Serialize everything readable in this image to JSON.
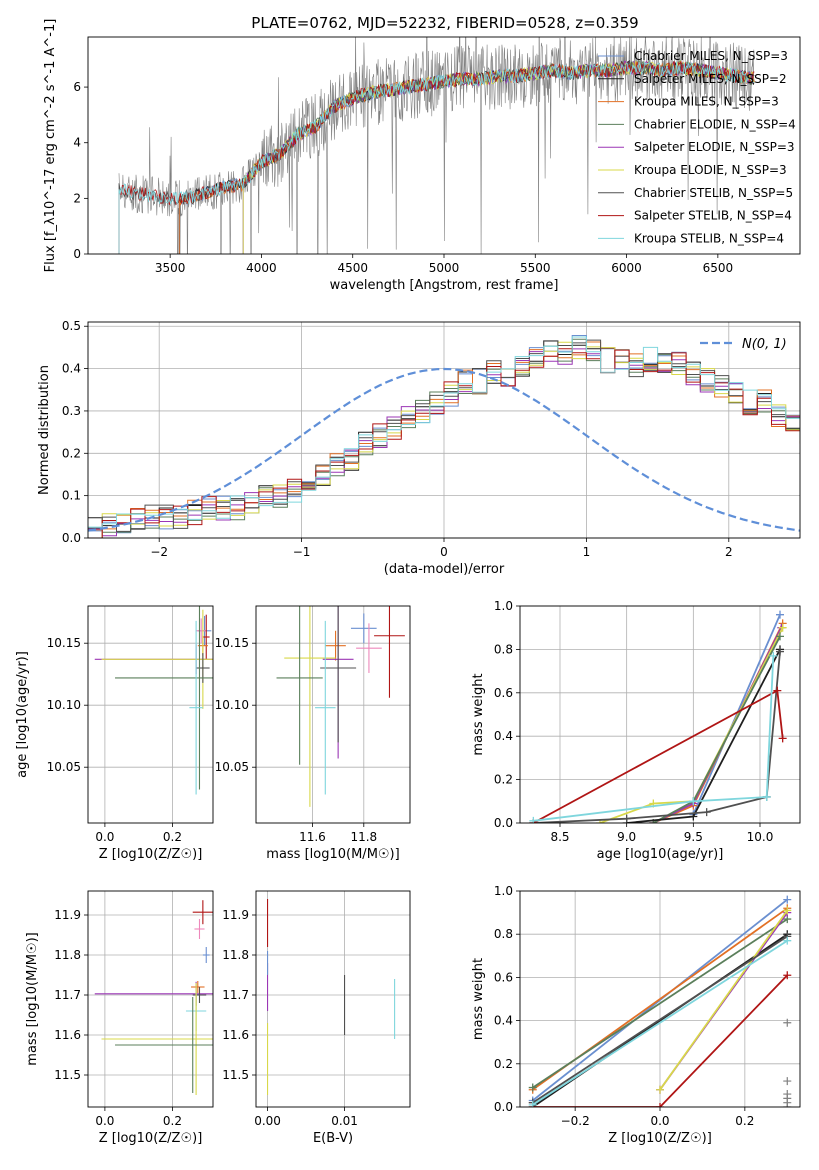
{
  "figure": {
    "title": "PLATE=0762, MJD=52232, FIBERID=0528, z=0.359"
  },
  "colors": {
    "Chabrier MILES": "#6a8fd0",
    "Salpeter MILES": "#1f1f1f",
    "Kroupa MILES": "#e27025",
    "Chabrier ELODIE": "#5b7f5b",
    "Salpeter ELODIE": "#9b36b5",
    "Kroupa ELODIE": "#d8d84a",
    "Chabrier STELIB": "#505050",
    "Salpeter STELIB": "#b01515",
    "Kroupa STELIB": "#7fd6dd",
    "pink": "#ee88bb",
    "data": "#808080",
    "normal": "#5f8fd8"
  },
  "chart_data": [
    {
      "id": "spectrum",
      "type": "line",
      "title": "PLATE=0762, MJD=52232, FIBERID=0528, z=0.359",
      "xlabel": "wavelength [Angstrom, rest frame]",
      "ylabel": "Flux [f_λ10^-17 erg cm^-2 s^-1 A^-1]",
      "xlim": [
        3050,
        6950
      ],
      "ylim": [
        0,
        7.8
      ],
      "xticks": [
        3500,
        4000,
        4500,
        5000,
        5500,
        6000,
        6500
      ],
      "yticks": [
        0,
        2,
        4,
        6
      ],
      "grid": false,
      "legend": "right",
      "continuum": {
        "x": [
          3200,
          3300,
          3400,
          3500,
          3600,
          3700,
          3800,
          3900,
          4000,
          4100,
          4200,
          4300,
          4400,
          4500,
          4600,
          4700,
          4800,
          4900,
          5000,
          5100,
          5200,
          5300,
          5400,
          5500,
          5600,
          5700,
          5800,
          5900,
          6000,
          6100,
          6200,
          6300,
          6400,
          6500,
          6600,
          6700
        ],
        "y": [
          2.4,
          2.2,
          2.1,
          2.0,
          2.0,
          2.2,
          2.4,
          2.5,
          3.3,
          3.6,
          4.3,
          4.6,
          5.3,
          5.6,
          5.8,
          5.9,
          6.0,
          6.1,
          6.2,
          6.3,
          6.3,
          6.4,
          6.4,
          6.5,
          6.6,
          6.5,
          6.6,
          6.6,
          6.7,
          6.7,
          6.6,
          6.7,
          6.6,
          6.5,
          6.4,
          6.3
        ]
      },
      "legend_entries": [
        {
          "label": "Chabrier MILES, N_SSP=3",
          "color": "#6a8fd0",
          "start": 3550,
          "end": 6700
        },
        {
          "label": "Salpeter MILES, N_SSP=2",
          "color": "#1f1f1f",
          "start": 3550,
          "end": 6700
        },
        {
          "label": "Kroupa MILES, N_SSP=3",
          "color": "#e27025",
          "start": 3550,
          "end": 6700
        },
        {
          "label": "Chabrier ELODIE, N_SSP=4",
          "color": "#5b7f5b",
          "start": 3900,
          "end": 6700
        },
        {
          "label": "Salpeter ELODIE, N_SSP=3",
          "color": "#9b36b5",
          "start": 3900,
          "end": 6700
        },
        {
          "label": "Kroupa ELODIE, N_SSP=3",
          "color": "#d8d84a",
          "start": 3900,
          "end": 6700
        },
        {
          "label": "Chabrier STELIB, N_SSP=5",
          "color": "#505050",
          "start": 3220,
          "end": 6700
        },
        {
          "label": "Salpeter STELIB, N_SSP=4",
          "color": "#b01515",
          "start": 3220,
          "end": 6700
        },
        {
          "label": "Kroupa STELIB, N_SSP=4",
          "color": "#7fd6dd",
          "start": 3220,
          "end": 6700
        }
      ]
    },
    {
      "id": "residuals",
      "type": "line",
      "xlabel": "(data-model)/error",
      "ylabel": "Normed distribution",
      "xlim": [
        -2.5,
        2.5
      ],
      "ylim": [
        0,
        0.51
      ],
      "xticks": [
        -2,
        -1,
        0,
        1,
        2
      ],
      "yticks": [
        0.0,
        0.1,
        0.2,
        0.3,
        0.4,
        0.5
      ],
      "grid": true,
      "legend": "top-right",
      "legend_label": "N(0, 1)",
      "bin_width": 0.1,
      "bin_start": -2.5,
      "base_hist": [
        0.02,
        0.03,
        0.03,
        0.04,
        0.05,
        0.05,
        0.05,
        0.06,
        0.07,
        0.07,
        0.07,
        0.08,
        0.1,
        0.1,
        0.11,
        0.13,
        0.15,
        0.17,
        0.19,
        0.22,
        0.24,
        0.26,
        0.29,
        0.3,
        0.32,
        0.34,
        0.37,
        0.37,
        0.39,
        0.38,
        0.4,
        0.43,
        0.44,
        0.44,
        0.45,
        0.44,
        0.42,
        0.42,
        0.41,
        0.42,
        0.41,
        0.41,
        0.39,
        0.37,
        0.36,
        0.34,
        0.32,
        0.32,
        0.29,
        0.27,
        0.25,
        0.22,
        0.21,
        0.19,
        0.16,
        0.15,
        0.13,
        0.13,
        0.11,
        0.11,
        0.1,
        0.09,
        0.08,
        0.08,
        0.07,
        0.06,
        0.06,
        0.05,
        0.04,
        0.04,
        0.04,
        0.03
      ],
      "series": [
        {
          "name": "Chabrier MILES",
          "color": "#6a8fd0"
        },
        {
          "name": "Salpeter MILES",
          "color": "#1f1f1f"
        },
        {
          "name": "Kroupa MILES",
          "color": "#e27025"
        },
        {
          "name": "Chabrier ELODIE",
          "color": "#5b7f5b"
        },
        {
          "name": "Salpeter ELODIE",
          "color": "#9b36b5"
        },
        {
          "name": "Kroupa ELODIE",
          "color": "#d8d84a"
        },
        {
          "name": "Chabrier STELIB",
          "color": "#505050"
        },
        {
          "name": "Salpeter STELIB",
          "color": "#b01515"
        },
        {
          "name": "Kroupa STELIB",
          "color": "#7fd6dd"
        }
      ]
    },
    {
      "id": "age_vs_Z",
      "type": "scatter",
      "xlabel": "Z [log10(Z/Z☉)]",
      "ylabel": "age [log10(age/yr)]",
      "xlim": [
        -0.05,
        0.32
      ],
      "ylim": [
        10.005,
        10.18
      ],
      "xticks": [
        0.0,
        0.2
      ],
      "yticks": [
        10.05,
        10.1,
        10.15
      ],
      "grid": true,
      "points": [
        {
          "x": 0.295,
          "y": 10.16,
          "xerr": 0.02,
          "yerr": 0.012,
          "color": "#6a8fd0"
        },
        {
          "x": 0.285,
          "y": 10.16,
          "xerr": 0.015,
          "yerr": 0.01,
          "color": "#ee88bb"
        },
        {
          "x": 0.3,
          "y": 10.155,
          "xerr": 0.01,
          "yerr": 0.018,
          "color": "#b01515"
        },
        {
          "x": 0.29,
          "y": 10.148,
          "xerr": 0.015,
          "yerr": 0.008,
          "color": "#e27025"
        },
        {
          "x": 0.27,
          "y": 10.137,
          "xerr": 0.3,
          "yerr": 0.012,
          "color": "#9b36b5"
        },
        {
          "x": 0.29,
          "y": 10.137,
          "xerr": 0.3,
          "yerr": 0.04,
          "color": "#d8d84a"
        },
        {
          "x": 0.29,
          "y": 10.13,
          "xerr": 0.02,
          "yerr": 0.012,
          "color": "#505050"
        },
        {
          "x": 0.28,
          "y": 10.122,
          "xerr": 0.25,
          "yerr": 0.09,
          "color": "#5b7f5b"
        },
        {
          "x": 0.27,
          "y": 10.098,
          "xerr": 0.02,
          "yerr": 0.07,
          "color": "#7fd6dd"
        }
      ]
    },
    {
      "id": "age_vs_mass",
      "type": "scatter",
      "xlabel": "mass [log10(M/M☉)]",
      "ylabel": "",
      "xlim": [
        11.38,
        11.98
      ],
      "ylim": [
        10.005,
        10.18
      ],
      "xticks": [
        11.6,
        11.8
      ],
      "yticks": [
        10.05,
        10.1,
        10.15
      ],
      "grid": true,
      "points": [
        {
          "x": 11.8,
          "y": 10.162,
          "xerr": 0.05,
          "yerr": 0.012,
          "color": "#6a8fd0"
        },
        {
          "x": 11.9,
          "y": 10.156,
          "xerr": 0.06,
          "yerr": 0.05,
          "color": "#b01515"
        },
        {
          "x": 11.69,
          "y": 10.148,
          "xerr": 0.04,
          "yerr": 0.012,
          "color": "#e27025"
        },
        {
          "x": 11.82,
          "y": 10.146,
          "xerr": 0.05,
          "yerr": 0.02,
          "color": "#ee88bb"
        },
        {
          "x": 11.7,
          "y": 10.137,
          "xerr": 0.06,
          "yerr": 0.08,
          "color": "#9b36b5"
        },
        {
          "x": 11.59,
          "y": 10.138,
          "xerr": 0.1,
          "yerr": 0.12,
          "color": "#d8d84a"
        },
        {
          "x": 11.7,
          "y": 10.13,
          "xerr": 0.07,
          "yerr": 0.06,
          "color": "#505050"
        },
        {
          "x": 11.55,
          "y": 10.122,
          "xerr": 0.09,
          "yerr": 0.07,
          "color": "#5b7f5b"
        },
        {
          "x": 11.65,
          "y": 10.098,
          "xerr": 0.04,
          "yerr": 0.07,
          "color": "#7fd6dd"
        }
      ]
    },
    {
      "id": "mass_weight_vs_age",
      "type": "line",
      "xlabel": "age [log10(age/yr)]",
      "ylabel": "mass weight",
      "xlim": [
        8.2,
        10.3
      ],
      "ylim": [
        0.0,
        1.0
      ],
      "xticks": [
        8.5,
        9.0,
        9.5,
        10.0
      ],
      "yticks": [
        0.0,
        0.2,
        0.4,
        0.6,
        0.8,
        1.0
      ],
      "grid": true,
      "series": [
        {
          "name": "Chabrier MILES",
          "color": "#6a8fd0",
          "x": [
            9.5,
            10.15
          ],
          "y": [
            0.04,
            0.96
          ]
        },
        {
          "name": "Kroupa MILES",
          "color": "#e27025",
          "x": [
            9.2,
            9.5,
            10.17
          ],
          "y": [
            0.0,
            0.08,
            0.92
          ]
        },
        {
          "name": "Salpeter ELODIE",
          "color": "#9b36b5",
          "x": [
            9.2,
            9.5,
            10.16
          ],
          "y": [
            0.0,
            0.09,
            0.9
          ]
        },
        {
          "name": "Kroupa ELODIE",
          "color": "#d8d84a",
          "x": [
            8.8,
            9.2,
            9.5,
            10.17
          ],
          "y": [
            0.0,
            0.09,
            0.1,
            0.9
          ]
        },
        {
          "name": "Chabrier ELODIE",
          "color": "#5b7f5b",
          "x": [
            9.2,
            9.5,
            10.15
          ],
          "y": [
            0.0,
            0.1,
            0.86
          ]
        },
        {
          "name": "Salpeter MILES",
          "color": "#1f1f1f",
          "x": [
            9.0,
            9.5,
            10.15
          ],
          "y": [
            0.0,
            0.03,
            0.8
          ]
        },
        {
          "name": "Chabrier STELIB",
          "color": "#505050",
          "x": [
            8.3,
            9.0,
            9.6,
            10.05,
            10.15
          ],
          "y": [
            0.0,
            0.02,
            0.05,
            0.12,
            0.79
          ]
        },
        {
          "name": "Salpeter STELIB",
          "color": "#b01515",
          "x": [
            8.3,
            10.13,
            10.17
          ],
          "y": [
            0.0,
            0.61,
            0.39
          ]
        },
        {
          "name": "Kroupa STELIB",
          "color": "#7fd6dd",
          "x": [
            8.3,
            9.5,
            10.05,
            10.1
          ],
          "y": [
            0.01,
            0.1,
            0.12,
            0.77
          ]
        }
      ]
    },
    {
      "id": "mass_vs_Z",
      "type": "scatter",
      "xlabel": "Z [log10(Z/Z☉)]",
      "ylabel": "mass [log10(M/M☉)]",
      "xlim": [
        -0.05,
        0.32
      ],
      "ylim": [
        11.42,
        11.96
      ],
      "xticks": [
        0.0,
        0.2
      ],
      "yticks": [
        11.5,
        11.6,
        11.7,
        11.8,
        11.9
      ],
      "grid": true,
      "points": [
        {
          "x": 0.29,
          "y": 11.907,
          "xerr": 0.03,
          "yerr": 0.03,
          "color": "#b01515"
        },
        {
          "x": 0.28,
          "y": 11.865,
          "xerr": 0.015,
          "yerr": 0.025,
          "color": "#ee88bb"
        },
        {
          "x": 0.3,
          "y": 11.8,
          "xerr": 0.01,
          "yerr": 0.02,
          "color": "#6a8fd0"
        },
        {
          "x": 0.275,
          "y": 11.72,
          "xerr": 0.02,
          "yerr": 0.015,
          "color": "#e27025"
        },
        {
          "x": 0.27,
          "y": 11.703,
          "xerr": 0.3,
          "yerr": 0.03,
          "color": "#9b36b5"
        },
        {
          "x": 0.28,
          "y": 11.7,
          "xerr": 0.02,
          "yerr": 0.02,
          "color": "#505050"
        },
        {
          "x": 0.27,
          "y": 11.66,
          "xerr": 0.03,
          "yerr": 0.05,
          "color": "#7fd6dd"
        },
        {
          "x": 0.27,
          "y": 11.59,
          "xerr": 0.28,
          "yerr": 0.14,
          "color": "#d8d84a"
        },
        {
          "x": 0.26,
          "y": 11.575,
          "xerr": 0.23,
          "yerr": 0.12,
          "color": "#5b7f5b"
        }
      ]
    },
    {
      "id": "mass_vs_ebv",
      "type": "scatter",
      "xlabel": "E(B-V)",
      "ylabel": "",
      "xlim": [
        -0.0015,
        0.0185
      ],
      "ylim": [
        11.42,
        11.96
      ],
      "xticks": [
        0.0,
        0.01
      ],
      "yticks": [
        11.5,
        11.6,
        11.7,
        11.8,
        11.9
      ],
      "grid": true,
      "points": [
        {
          "x": 0.0,
          "y": 11.88,
          "xerr": 0,
          "yerr": 0.06,
          "color": "#b01515"
        },
        {
          "x": 0.0,
          "y": 11.72,
          "xerr": 0,
          "yerr": 0.06,
          "color": "#9b36b5"
        },
        {
          "x": 0.0,
          "y": 11.54,
          "xerr": 0,
          "yerr": 0.09,
          "color": "#d8d84a"
        },
        {
          "x": 0.0,
          "y": 11.78,
          "xerr": 0,
          "yerr": 0.03,
          "color": "#6a8fd0"
        },
        {
          "x": 0.01,
          "y": 11.675,
          "xerr": 0,
          "yerr": 0.075,
          "color": "#505050"
        },
        {
          "x": 0.0165,
          "y": 11.665,
          "xerr": 0,
          "yerr": 0.075,
          "color": "#7fd6dd"
        }
      ]
    },
    {
      "id": "mass_weight_vs_Z",
      "type": "line",
      "xlabel": "Z [log10(Z/Z☉)]",
      "ylabel": "mass weight",
      "xlim": [
        -0.33,
        0.33
      ],
      "ylim": [
        0.0,
        1.0
      ],
      "xticks": [
        -0.2,
        0.0,
        0.2
      ],
      "yticks": [
        0.0,
        0.2,
        0.4,
        0.6,
        0.8,
        1.0
      ],
      "grid": true,
      "series": [
        {
          "name": "Chabrier MILES",
          "color": "#6a8fd0",
          "x": [
            -0.3,
            0.3
          ],
          "y": [
            0.03,
            0.96
          ]
        },
        {
          "name": "Kroupa MILES",
          "color": "#e27025",
          "x": [
            -0.3,
            0.3
          ],
          "y": [
            0.08,
            0.92
          ]
        },
        {
          "name": "Salpeter MILES",
          "color": "#1f1f1f",
          "x": [
            -0.3,
            0.3
          ],
          "y": [
            0.0,
            0.8
          ]
        },
        {
          "name": "Chabrier ELODIE",
          "color": "#5b7f5b",
          "x": [
            -0.3,
            0.3
          ],
          "y": [
            0.09,
            0.87
          ]
        },
        {
          "name": "Salpeter ELODIE",
          "color": "#9b36b5",
          "x": [
            0.0,
            0.3
          ],
          "y": [
            0.08,
            0.9
          ]
        },
        {
          "name": "Kroupa ELODIE",
          "color": "#d8d84a",
          "x": [
            0.0,
            0.3
          ],
          "y": [
            0.08,
            0.91
          ]
        },
        {
          "name": "Chabrier STELIB",
          "color": "#505050",
          "x": [
            -0.3,
            0.3
          ],
          "y": [
            0.02,
            0.79
          ]
        },
        {
          "name": "Salpeter STELIB",
          "color": "#b01515",
          "x": [
            -0.3,
            0.0,
            0.3
          ],
          "y": [
            0.0,
            0.0,
            0.61
          ]
        },
        {
          "name": "Kroupa STELIB",
          "color": "#7fd6dd",
          "x": [
            -0.3,
            0.3
          ],
          "y": [
            0.01,
            0.77
          ]
        }
      ],
      "vertical_markers": {
        "x": 0.3,
        "y": [
          0.0,
          0.02,
          0.04,
          0.06,
          0.12,
          0.39
        ]
      }
    }
  ]
}
